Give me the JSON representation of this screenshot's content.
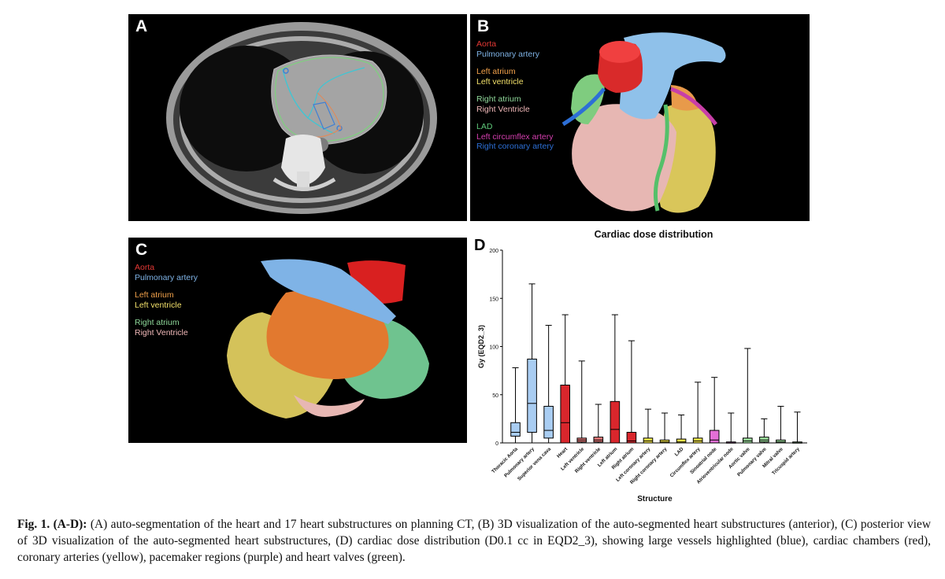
{
  "panels": {
    "a": {
      "letter": "A"
    },
    "b": {
      "letter": "B",
      "legend": [
        {
          "label": "Aorta",
          "color": "#e53935"
        },
        {
          "label": "Pulmonary artery",
          "color": "#7fb3e6"
        },
        {
          "label": "Left atrium",
          "color": "#f0a04a"
        },
        {
          "label": "Left ventricle",
          "color": "#f2e06a"
        },
        {
          "label": "Right atrium",
          "color": "#8fd89a"
        },
        {
          "label": "Right Ventricle",
          "color": "#f0b8b8"
        },
        {
          "label": "LAD",
          "color": "#5fc97a"
        },
        {
          "label": "Left circumflex artery",
          "color": "#d63fb0"
        },
        {
          "label": "Right coronary artery",
          "color": "#2d6fd6"
        }
      ]
    },
    "c": {
      "letter": "C",
      "legend": [
        {
          "label": "Aorta",
          "color": "#e53935"
        },
        {
          "label": "Pulmonary artery",
          "color": "#7fb3e6"
        },
        {
          "label": "Left atrium",
          "color": "#f0a04a"
        },
        {
          "label": "Left ventricle",
          "color": "#f2e06a"
        },
        {
          "label": "Right atrium",
          "color": "#8fd89a"
        },
        {
          "label": "Right Ventricle",
          "color": "#f0b8b8"
        }
      ]
    },
    "d": {
      "letter": "D"
    }
  },
  "chart_data": {
    "type": "box",
    "title": "Cardiac dose distribution",
    "xlabel": "Structure",
    "ylabel": "Gy (EQD2_3)",
    "ylim": [
      0,
      200
    ],
    "yticks": [
      0,
      50,
      100,
      150,
      200
    ],
    "series": [
      {
        "label": "Thoracic Aorta",
        "min": 0,
        "q1": 7,
        "median": 11,
        "q3": 21,
        "max": 78,
        "color": "#a9cdf2"
      },
      {
        "label": "Pulmonary artery",
        "min": 0,
        "q1": 11,
        "median": 41,
        "q3": 87,
        "max": 165,
        "color": "#a9cdf2"
      },
      {
        "label": "Superior vena cava",
        "min": 0,
        "q1": 5,
        "median": 13,
        "q3": 38,
        "max": 122,
        "color": "#a9cdf2"
      },
      {
        "label": "Heart",
        "min": 0,
        "q1": 0,
        "median": 21,
        "q3": 60,
        "max": 133,
        "color": "#d9262c"
      },
      {
        "label": "Left ventricle",
        "min": 0,
        "q1": 1,
        "median": 3,
        "q3": 5,
        "max": 85,
        "color": "#e97a7a"
      },
      {
        "label": "Right ventricle",
        "min": 0,
        "q1": 1,
        "median": 3,
        "q3": 6,
        "max": 40,
        "color": "#e97a7a"
      },
      {
        "label": "Left atrium",
        "min": 0,
        "q1": 0,
        "median": 14,
        "q3": 43,
        "max": 133,
        "color": "#d9262c"
      },
      {
        "label": "Right atrium",
        "min": 0,
        "q1": 0,
        "median": 2,
        "q3": 11,
        "max": 106,
        "color": "#d9262c"
      },
      {
        "label": "Left coronary artery",
        "min": 0,
        "q1": 0,
        "median": 2,
        "q3": 5,
        "max": 35,
        "color": "#f7e94a"
      },
      {
        "label": "Right coronary artery",
        "min": 0,
        "q1": 0,
        "median": 1,
        "q3": 3,
        "max": 31,
        "color": "#f7e94a"
      },
      {
        "label": "LAD",
        "min": 0,
        "q1": 0,
        "median": 1,
        "q3": 4,
        "max": 29,
        "color": "#f7e94a"
      },
      {
        "label": "Circumflex artery",
        "min": 0,
        "q1": 0,
        "median": 2,
        "q3": 5,
        "max": 63,
        "color": "#f7e94a"
      },
      {
        "label": "Sinoatrial node",
        "min": 0,
        "q1": 0,
        "median": 3,
        "q3": 13,
        "max": 68,
        "color": "#e36fd6"
      },
      {
        "label": "Atrioventricular node",
        "min": 0,
        "q1": 0,
        "median": 0,
        "q3": 1,
        "max": 31,
        "color": "#e36fd6"
      },
      {
        "label": "Aortic valve",
        "min": 0,
        "q1": 0,
        "median": 2,
        "q3": 5,
        "max": 98,
        "color": "#9ee09e"
      },
      {
        "label": "Pulmonary valve",
        "min": 0,
        "q1": 1,
        "median": 3,
        "q3": 6,
        "max": 25,
        "color": "#9ee09e"
      },
      {
        "label": "Mitral valve",
        "min": 0,
        "q1": 0,
        "median": 1,
        "q3": 3,
        "max": 38,
        "color": "#9ee09e"
      },
      {
        "label": "Tricuspid artery",
        "min": 0,
        "q1": 0,
        "median": 0,
        "q3": 1,
        "max": 32,
        "color": "#9ee09e"
      }
    ]
  },
  "caption": {
    "label": "Fig. 1. (A-D):",
    "text": " (A) auto-segmentation of the heart and 17 heart substructures on planning CT, (B) 3D visualization of the auto-segmented heart substructures (anterior), (C) posterior view of 3D visualization of the auto-segmented heart substructures, (D) cardiac dose distribution (D0.1 cc in EQD2_3), showing large vessels highlighted (blue), cardiac chambers (red), coronary arteries (yellow), pacemaker regions (purple) and heart valves (green)."
  }
}
